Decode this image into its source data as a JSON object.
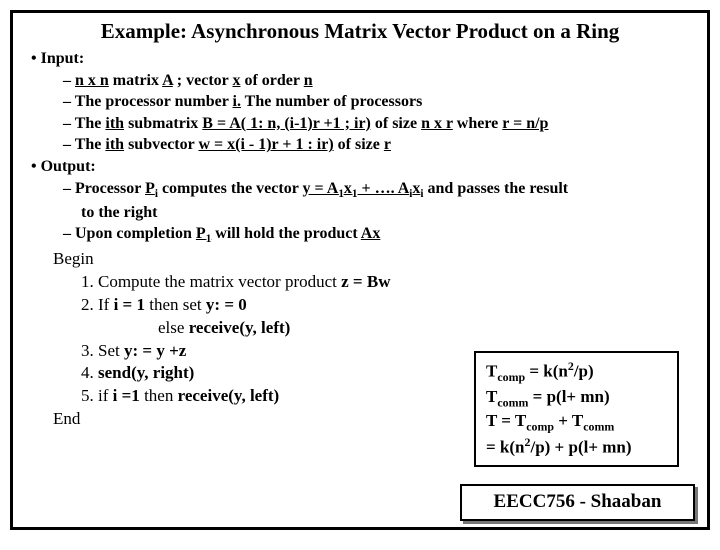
{
  "title": "Example: Asynchronous Matrix Vector Product on a Ring",
  "input_label": "Input:",
  "inputs": {
    "i1a": "n x n",
    "i1b": " matrix ",
    "i1c": "A",
    "i1d": "   ;  vector ",
    "i1e": "x",
    "i1f": " of order ",
    "i1g": "n",
    "i2a": "The processor number ",
    "i2b": "i.",
    "i2c": "    The number of processors",
    "i3a": "The ",
    "i3b": "ith",
    "i3c": " submatrix ",
    "i3d": "B =  A( 1: n, (i-1)r +1 ; ir)",
    "i3e": " of size ",
    "i3f": "n x r",
    "i3g": " where ",
    "i3h": "r = n/p",
    "i4a": "The ",
    "i4b": "ith",
    "i4c": " subvector ",
    "i4d": "w = x(i - 1)r + 1 : ir)",
    "i4e": " of size ",
    "i4f": "r"
  },
  "output_label": "Output:",
  "outputs": {
    "o1a": "Processor ",
    "o1b": "P",
    "o1c": "i",
    "o1d": " computes the vector ",
    "o1e": "y = A",
    "o1f": "1",
    "o1g": "x",
    "o1h": "1",
    "o1i": " + …. A",
    "o1j": "i",
    "o1k": "x",
    "o1l": "i",
    "o1m": " and passes the result",
    "o1n": "to the right",
    "o2a": "Upon completion ",
    "o2b": "P",
    "o2c": "1",
    "o2d": " will hold the product ",
    "o2e": "Ax"
  },
  "algo": {
    "begin": "Begin",
    "s1a": "1. Compute the matrix vector product ",
    "s1b": "z = Bw",
    "s2a": "2. If ",
    "s2b": "i =  1",
    "s2c": " then set ",
    "s2d": "y: = 0",
    "s2e": "   else ",
    "s2f": "receive(y, left)",
    "s3a": "3. Set ",
    "s3b": "y: = y +z",
    "s4a": "4. ",
    "s4b": "send(y, right)",
    "s5a": "5. if ",
    "s5b": "i =1",
    "s5c": " then ",
    "s5d": "receive(y, left)",
    "end": "End"
  },
  "box": {
    "l1a": "T",
    "l1b": "comp",
    "l1c": " = k(n",
    "l1d": "2",
    "l1e": "/p)",
    "l2a": "T",
    "l2b": "comm",
    "l2c": " =  p(l+ mn)",
    "l3a": "T = T",
    "l3b": "comp",
    "l3c": " + T",
    "l3d": "comm",
    "l4a": "    = k(n",
    "l4b": "2",
    "l4c": "/p) +  p(l+ mn)"
  },
  "footer": "EECC756 - Shaaban"
}
